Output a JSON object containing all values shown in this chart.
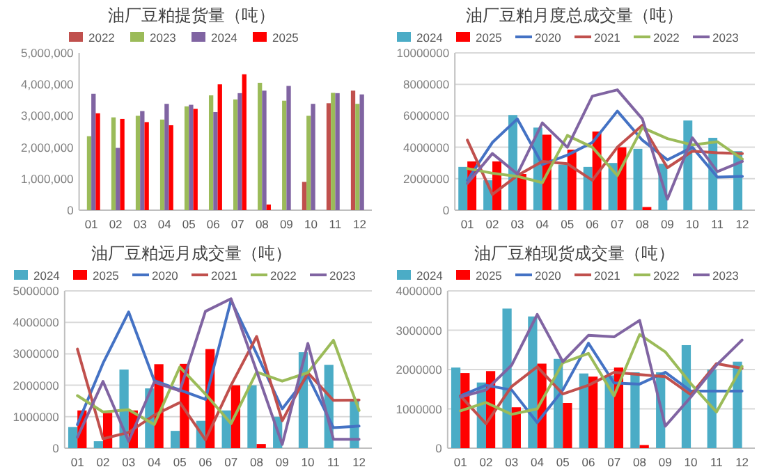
{
  "chart_data": [
    {
      "type": "bar",
      "title": "油厂豆粕提货量（吨）",
      "categories": [
        "01",
        "02",
        "03",
        "04",
        "05",
        "06",
        "07",
        "08",
        "09",
        "10",
        "11",
        "12"
      ],
      "ylim": [
        0,
        5000000
      ],
      "yticks": [
        0,
        {
          "value": 1000000,
          "label": "1,000,000"
        },
        {
          "value": 2000000,
          "label": "2,000,000"
        },
        {
          "value": 3000000,
          "label": "3,000,000"
        },
        {
          "value": 4000000,
          "label": "4,000,000"
        },
        {
          "value": 5000000,
          "label": "5,000,000"
        }
      ],
      "grid": false,
      "legend": "top",
      "series": [
        {
          "name": "2022",
          "color": "#c0504d",
          "values": [
            null,
            null,
            null,
            null,
            null,
            null,
            null,
            null,
            null,
            900000,
            3400000,
            3800000
          ]
        },
        {
          "name": "2023",
          "color": "#9bbb59",
          "values": [
            2350000,
            2950000,
            3000000,
            2880000,
            3300000,
            3650000,
            3520000,
            4050000,
            3480000,
            3000000,
            3730000,
            3380000
          ]
        },
        {
          "name": "2024",
          "color": "#8064a2",
          "values": [
            3700000,
            1980000,
            3150000,
            3380000,
            3350000,
            3120000,
            3720000,
            3800000,
            3950000,
            3380000,
            3720000,
            3680000
          ]
        },
        {
          "name": "2025",
          "color": "#ff0000",
          "values": [
            3080000,
            2900000,
            2800000,
            2700000,
            3220000,
            4000000,
            4320000,
            180000,
            null,
            null,
            null,
            null
          ]
        }
      ]
    },
    {
      "type": "bar",
      "title": "油厂豆粕月度总成交量（吨）",
      "categories": [
        "01",
        "02",
        "03",
        "04",
        "05",
        "06",
        "07",
        "08",
        "09",
        "10",
        "11",
        "12"
      ],
      "ylim": [
        0,
        10000000
      ],
      "yticks": [
        0,
        2000000,
        4000000,
        6000000,
        8000000,
        10000000
      ],
      "grid": "y",
      "legend": "top",
      "series": [
        {
          "name": "2024",
          "color": "#4bacc6",
          "values": [
            2750000,
            1900000,
            6050000,
            5250000,
            2900000,
            2750000,
            3000000,
            3900000,
            2950000,
            5700000,
            4600000,
            3750000
          ]
        },
        {
          "name": "2025",
          "color": "#ff0000",
          "values": [
            3100000,
            3100000,
            2300000,
            4800000,
            3850000,
            5000000,
            4000000,
            200000,
            null,
            null,
            null,
            null
          ]
        },
        {
          "name": "2020",
          "type": "line",
          "color": "#4472c4",
          "values": [
            1900000,
            4300000,
            5800000,
            2900000,
            3500000,
            4300000,
            6300000,
            4450000,
            3200000,
            4000000,
            2100000,
            2150000
          ]
        },
        {
          "name": "2021",
          "type": "line",
          "color": "#c0504d",
          "values": [
            4450000,
            1000000,
            2200000,
            3100000,
            2950000,
            1900000,
            4000000,
            5400000,
            2700000,
            3750000,
            3650000,
            3600000
          ]
        },
        {
          "name": "2022",
          "type": "line",
          "color": "#9bbb59",
          "values": [
            2650000,
            2350000,
            2150000,
            1750000,
            4750000,
            4000000,
            2200000,
            5250000,
            4550000,
            4150000,
            4350000,
            3250000
          ]
        },
        {
          "name": "2023",
          "type": "line",
          "color": "#8064a2",
          "values": [
            1700000,
            3600000,
            2300000,
            5550000,
            4000000,
            7250000,
            7650000,
            5800000,
            700000,
            4600000,
            2450000,
            3100000
          ]
        }
      ]
    },
    {
      "type": "bar",
      "title": "油厂豆粕远月成交量（吨）",
      "categories": [
        "01",
        "02",
        "03",
        "04",
        "05",
        "06",
        "07",
        "08",
        "09",
        "10",
        "11",
        "12"
      ],
      "ylim": [
        0,
        5000000
      ],
      "yticks": [
        0,
        1000000,
        2000000,
        3000000,
        4000000,
        5000000
      ],
      "grid": "y",
      "legend": "top",
      "series": [
        {
          "name": "2024",
          "color": "#4bacc6",
          "values": [
            670000,
            220000,
            2500000,
            1900000,
            550000,
            870000,
            1200000,
            2000000,
            1000000,
            3050000,
            2650000,
            1570000
          ]
        },
        {
          "name": "2025",
          "color": "#ff0000",
          "values": [
            1200000,
            1120000,
            1200000,
            2670000,
            2680000,
            3150000,
            2000000,
            130000,
            null,
            null,
            null,
            null
          ]
        },
        {
          "name": "2020",
          "type": "line",
          "color": "#4472c4",
          "values": [
            750000,
            2700000,
            4330000,
            2150000,
            1850000,
            1550000,
            4700000,
            3000000,
            1250000,
            2300000,
            650000,
            700000
          ]
        },
        {
          "name": "2021",
          "type": "line",
          "color": "#c0504d",
          "values": [
            3150000,
            300000,
            500000,
            1050000,
            1450000,
            270000,
            2000000,
            3550000,
            870000,
            2400000,
            1520000,
            1530000
          ]
        },
        {
          "name": "2022",
          "type": "line",
          "color": "#9bbb59",
          "values": [
            1670000,
            1150000,
            1220000,
            750000,
            2580000,
            1720000,
            780000,
            2420000,
            2130000,
            2400000,
            3430000,
            1200000
          ]
        },
        {
          "name": "2023",
          "type": "line",
          "color": "#8064a2",
          "values": [
            350000,
            2120000,
            220000,
            2100000,
            1820000,
            4350000,
            4750000,
            2450000,
            120000,
            3330000,
            280000,
            280000
          ]
        }
      ]
    },
    {
      "type": "bar",
      "title": "油厂豆粕现货成交量（吨）",
      "categories": [
        "01",
        "02",
        "03",
        "04",
        "05",
        "06",
        "07",
        "08",
        "09",
        "10",
        "11",
        "12"
      ],
      "ylim": [
        0,
        4000000
      ],
      "yticks": [
        0,
        1000000,
        2000000,
        3000000,
        4000000
      ],
      "grid": "y",
      "legend": "top",
      "series": [
        {
          "name": "2024",
          "color": "#4bacc6",
          "values": [
            2050000,
            1670000,
            3550000,
            3350000,
            2270000,
            1900000,
            1850000,
            1930000,
            1930000,
            2620000,
            2000000,
            2200000
          ]
        },
        {
          "name": "2025",
          "color": "#ff0000",
          "values": [
            1910000,
            1960000,
            1040000,
            2150000,
            1150000,
            1820000,
            2050000,
            80000,
            null,
            null,
            null,
            null
          ]
        },
        {
          "name": "2020",
          "type": "line",
          "color": "#4472c4",
          "values": [
            1330000,
            1600000,
            1480000,
            650000,
            1480000,
            2670000,
            1660000,
            1630000,
            1930000,
            1450000,
            1450000,
            1450000
          ]
        },
        {
          "name": "2021",
          "type": "line",
          "color": "#c0504d",
          "values": [
            1330000,
            620000,
            1570000,
            2070000,
            1380000,
            1600000,
            1930000,
            1870000,
            1820000,
            1360000,
            2150000,
            2030000
          ]
        },
        {
          "name": "2022",
          "type": "line",
          "color": "#9bbb59",
          "values": [
            950000,
            1160000,
            860000,
            1000000,
            2170000,
            2410000,
            1330000,
            2890000,
            2450000,
            1640000,
            920000,
            2080000
          ]
        },
        {
          "name": "2023",
          "type": "line",
          "color": "#8064a2",
          "values": [
            1300000,
            1480000,
            2110000,
            3400000,
            2200000,
            2870000,
            2830000,
            3250000,
            560000,
            1300000,
            2110000,
            2750000
          ]
        }
      ]
    }
  ]
}
